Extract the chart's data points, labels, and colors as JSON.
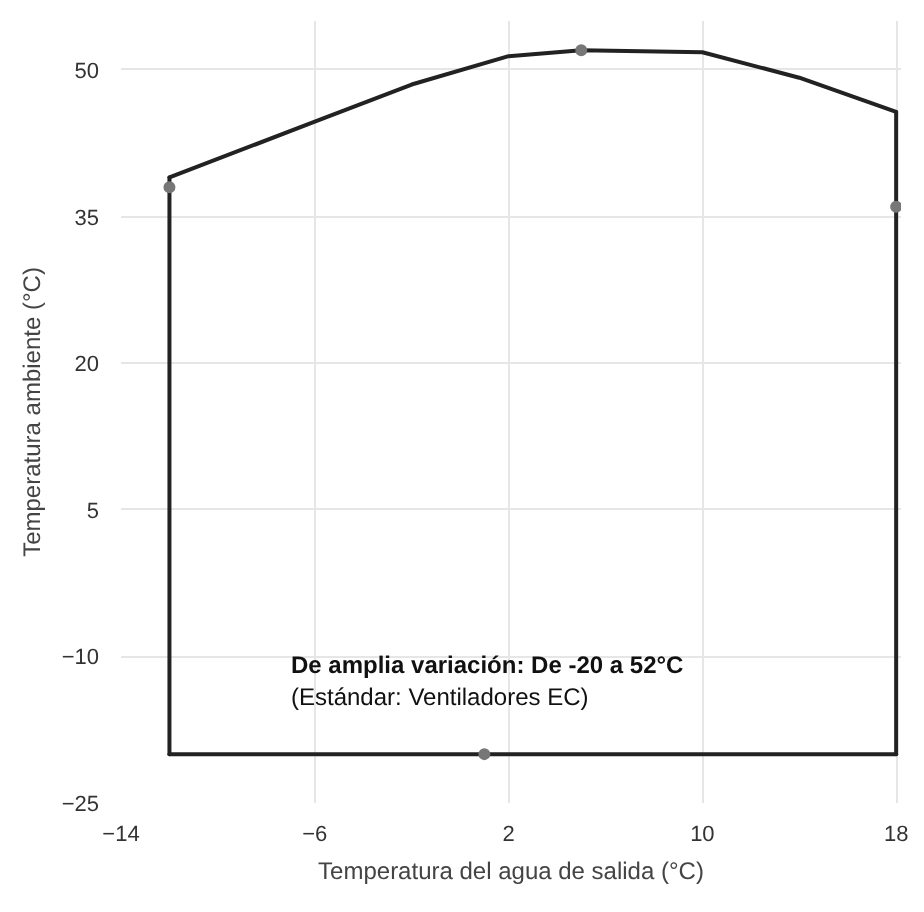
{
  "chart_data": {
    "type": "line",
    "xlabel": "Temperatura del agua de salida (°C)",
    "ylabel": "Temperatura ambiente (°C)",
    "xlim": [
      -14,
      18.2
    ],
    "ylim": [
      -25,
      55
    ],
    "xticks": [
      -14,
      -6,
      2,
      10,
      18
    ],
    "yticks": [
      -25,
      -10,
      5,
      20,
      35,
      50
    ],
    "grid": true,
    "series": [
      {
        "color": "#222222",
        "x": [
          -12,
          -6,
          -2,
          2,
          5,
          10,
          14,
          18
        ],
        "values": [
          39,
          44.7,
          48.5,
          51.4,
          52,
          51.8,
          49.2,
          45.7
        ]
      },
      {
        "color": "#222222",
        "x": [
          -12,
          18
        ],
        "values": [
          -20,
          -20
        ]
      },
      {
        "color": "#222222",
        "x": [
          -12,
          -12
        ],
        "values": [
          -20,
          39
        ]
      },
      {
        "color": "#222222",
        "x": [
          18,
          18
        ],
        "values": [
          -20,
          45.7
        ]
      },
      {
        "type": "scatter",
        "color": "#777777",
        "x": [
          -12,
          5,
          18,
          1
        ],
        "values": [
          38,
          52,
          36,
          -20
        ]
      }
    ],
    "annotations": [
      "De amplia variación: De -20 a 52°C",
      "(Estándar: Ventiladores EC)"
    ]
  }
}
